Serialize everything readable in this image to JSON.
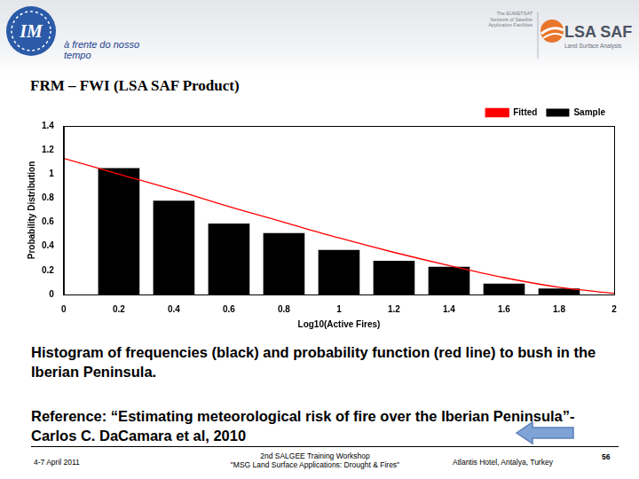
{
  "header": {
    "tagline": "à frente do nosso tempo",
    "left_logo": "IM",
    "right_logo": {
      "name": "LSA SAF",
      "network": "The EUMETSAT Network of Satellite Application Facilities",
      "subtitle": "Land Surface Analysis"
    }
  },
  "slide_title": "FRM – FWI (LSA SAF Product)",
  "chart_data": {
    "type": "bar",
    "x_label": "Log10(Active Fires)",
    "y_label": "Probability Distribution",
    "xlim": [
      0,
      2
    ],
    "xticks": [
      0,
      0.2,
      0.4,
      0.6,
      0.8,
      1,
      1.2,
      1.4,
      1.6,
      1.8,
      2
    ],
    "ylim": [
      0,
      1.4
    ],
    "yticks": [
      0,
      0.2,
      0.4,
      0.6,
      0.8,
      1,
      1.2,
      1.4
    ],
    "grid": false,
    "legend": "upper right",
    "series": [
      {
        "name": "Sample",
        "type": "bar",
        "color": "#000000",
        "x": [
          0.2,
          0.4,
          0.6,
          0.8,
          1,
          1.2,
          1.4,
          1.6,
          1.8
        ],
        "values": [
          1.05,
          0.78,
          0.59,
          0.51,
          0.37,
          0.28,
          0.23,
          0.09,
          0.05
        ]
      },
      {
        "name": "Fitted",
        "type": "line",
        "color": "#ff0000",
        "marker": "none",
        "line_style": "solid",
        "x": [
          0,
          0.2,
          0.4,
          0.6,
          0.8,
          1,
          1.2,
          1.4,
          1.6,
          1.8,
          2
        ],
        "values": [
          1.13,
          1.0,
          0.87,
          0.73,
          0.6,
          0.47,
          0.35,
          0.24,
          0.14,
          0.06,
          0.01
        ]
      }
    ]
  },
  "caption": "Histogram of frequencies (black) and probability function (red line) to bush in the Iberian Peninsula.",
  "reference": {
    "label": "Reference:",
    "text": "“Estimating meteorological risk of fire over the Iberian Peninsula”- Carlos C. DaCamara et al, 2010"
  },
  "footer": {
    "date": "4-7 April 2011",
    "event": [
      "2nd SALGEE Training Workshop",
      "\"MSG Land Surface Applications: Drought & Fires\""
    ],
    "venue": "Atlantis Hotel, Antalya, Turkey",
    "page": 56
  }
}
